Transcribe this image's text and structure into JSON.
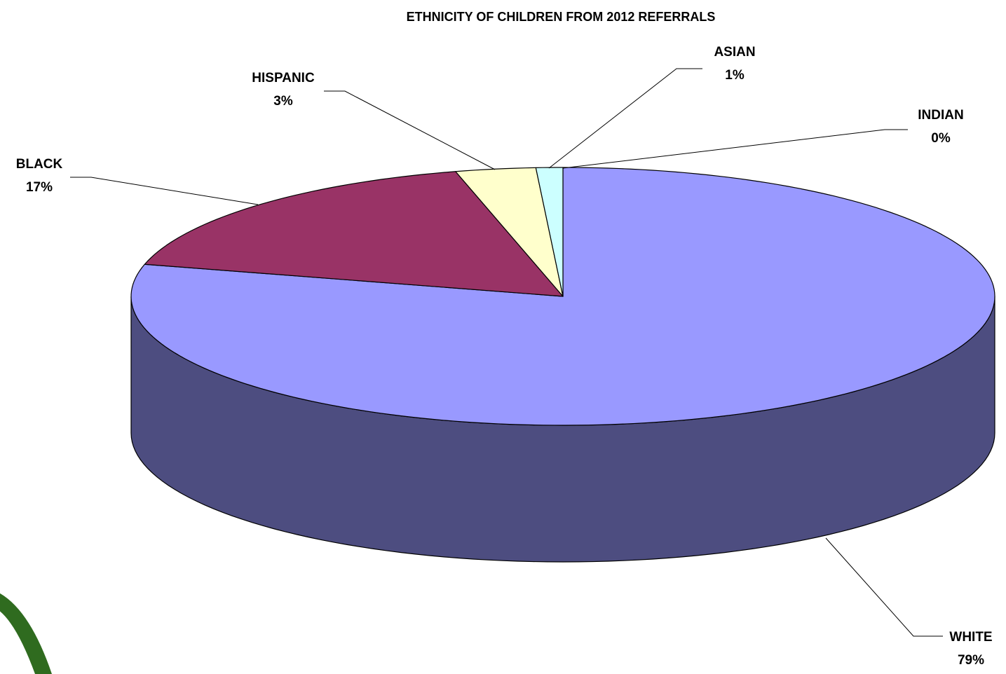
{
  "chart_data": {
    "type": "pie",
    "title": "ETHNICITY OF CHILDREN FROM 2012 REFERRALS",
    "three_d": true,
    "categories": [
      "WHITE",
      "BLACK",
      "HISPANIC",
      "ASIAN",
      "INDIAN"
    ],
    "values": [
      79,
      17,
      3,
      1,
      0
    ],
    "value_labels": [
      "79%",
      "17%",
      "3%",
      "1%",
      "0%"
    ],
    "colors": {
      "WHITE": "#9999ff",
      "BLACK": "#993366",
      "HISPANIC": "#ffffcc",
      "ASIAN": "#ccffff",
      "INDIAN": "#3366ff"
    },
    "legend": "none"
  }
}
